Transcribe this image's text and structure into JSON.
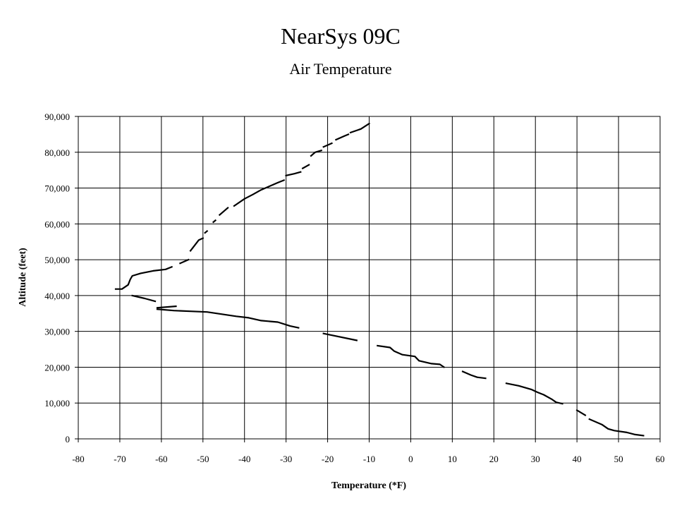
{
  "chart_data": {
    "type": "line",
    "title": "NearSys 09C",
    "subtitle": "Air Temperature",
    "xlabel": "Temperature (*F)",
    "ylabel": "Altitude (feet)",
    "xlim": [
      -80,
      60
    ],
    "ylim": [
      0,
      90000
    ],
    "x_ticks": [
      "-80",
      "-70",
      "-60",
      "-50",
      "-40",
      "-30",
      "-20",
      "-10",
      "0",
      "10",
      "20",
      "30",
      "40",
      "50",
      "60"
    ],
    "y_ticks": [
      "0",
      "10,000",
      "20,000",
      "30,000",
      "40,000",
      "50,000",
      "60,000",
      "70,000",
      "80,000",
      "90,000"
    ],
    "grid": true,
    "legend": false,
    "line_color": "#000000",
    "series": [
      {
        "segments": [
          [
            [
              -71,
              41800
            ],
            [
              -69.5,
              41800
            ],
            [
              -68,
              43000
            ],
            [
              -67.5,
              44500
            ],
            [
              -67,
              45500
            ],
            [
              -65,
              46200
            ],
            [
              -62,
              46900
            ],
            [
              -59,
              47300
            ],
            [
              -57.5,
              48000
            ]
          ],
          [
            [
              -55.5,
              49000
            ],
            [
              -53.5,
              50000
            ]
          ],
          [
            [
              -53,
              52500
            ],
            [
              -52,
              54000
            ],
            [
              -51,
              55500
            ],
            [
              -50,
              56000
            ]
          ],
          [
            [
              -49.5,
              57500
            ],
            [
              -49,
              58000
            ]
          ],
          [
            [
              -47.5,
              60500
            ],
            [
              -47,
              61000
            ]
          ],
          [
            [
              -46,
              62500
            ],
            [
              -44,
              64500
            ]
          ],
          [
            [
              -42.5,
              65000
            ],
            [
              -40,
              67000
            ],
            [
              -38,
              68200
            ],
            [
              -36,
              69500
            ],
            [
              -34,
              70500
            ],
            [
              -32,
              71500
            ],
            [
              -30.5,
              72200
            ]
          ],
          [
            [
              -30,
              73500
            ],
            [
              -28,
              74000
            ],
            [
              -26.5,
              74500
            ]
          ],
          [
            [
              -26,
              75500
            ],
            [
              -24.5,
              76500
            ]
          ],
          [
            [
              -24,
              79000
            ],
            [
              -23,
              80000
            ],
            [
              -21.5,
              80500
            ]
          ],
          [
            [
              -21,
              81500
            ],
            [
              -19,
              82500
            ]
          ],
          [
            [
              -18,
              83500
            ],
            [
              -16,
              84500
            ],
            [
              -15,
              85000
            ]
          ],
          [
            [
              -14.5,
              85500
            ],
            [
              -12,
              86500
            ],
            [
              -10,
              88000
            ]
          ]
        ]
      },
      {
        "segments": [
          [
            [
              -67,
              40000
            ],
            [
              -64,
              39200
            ],
            [
              -61.5,
              38400
            ]
          ],
          [
            [
              -61,
              36600
            ],
            [
              -56.5,
              37000
            ]
          ],
          [
            [
              -61,
              36200
            ],
            [
              -57,
              35800
            ],
            [
              -53,
              35600
            ],
            [
              -49,
              35400
            ],
            [
              -46,
              34900
            ],
            [
              -42,
              34200
            ],
            [
              -39,
              33800
            ],
            [
              -36,
              33000
            ],
            [
              -32,
              32600
            ],
            [
              -29,
              31500
            ],
            [
              -27,
              31000
            ]
          ],
          [
            [
              -21,
              29400
            ],
            [
              -13,
              27500
            ]
          ],
          [
            [
              -8,
              26000
            ],
            [
              -5,
              25500
            ],
            [
              -4,
              24500
            ],
            [
              -2,
              23500
            ],
            [
              1,
              23000
            ],
            [
              2,
              21800
            ],
            [
              5,
              21000
            ],
            [
              7,
              20800
            ],
            [
              8,
              20000
            ]
          ],
          [
            [
              12.5,
              18800
            ],
            [
              14.5,
              17800
            ],
            [
              16,
              17200
            ],
            [
              18,
              16900
            ]
          ],
          [
            [
              23,
              15500
            ],
            [
              26,
              14800
            ],
            [
              29,
              13800
            ],
            [
              30.5,
              13000
            ],
            [
              32,
              12300
            ],
            [
              34,
              11000
            ],
            [
              35,
              10200
            ],
            [
              36.5,
              9800
            ]
          ],
          [
            [
              40,
              8000
            ],
            [
              42,
              6600
            ]
          ],
          [
            [
              43,
              5500
            ],
            [
              46,
              4000
            ],
            [
              47.5,
              2800
            ],
            [
              49,
              2300
            ],
            [
              52,
              1800
            ],
            [
              54,
              1200
            ],
            [
              56,
              900
            ]
          ]
        ]
      }
    ]
  }
}
